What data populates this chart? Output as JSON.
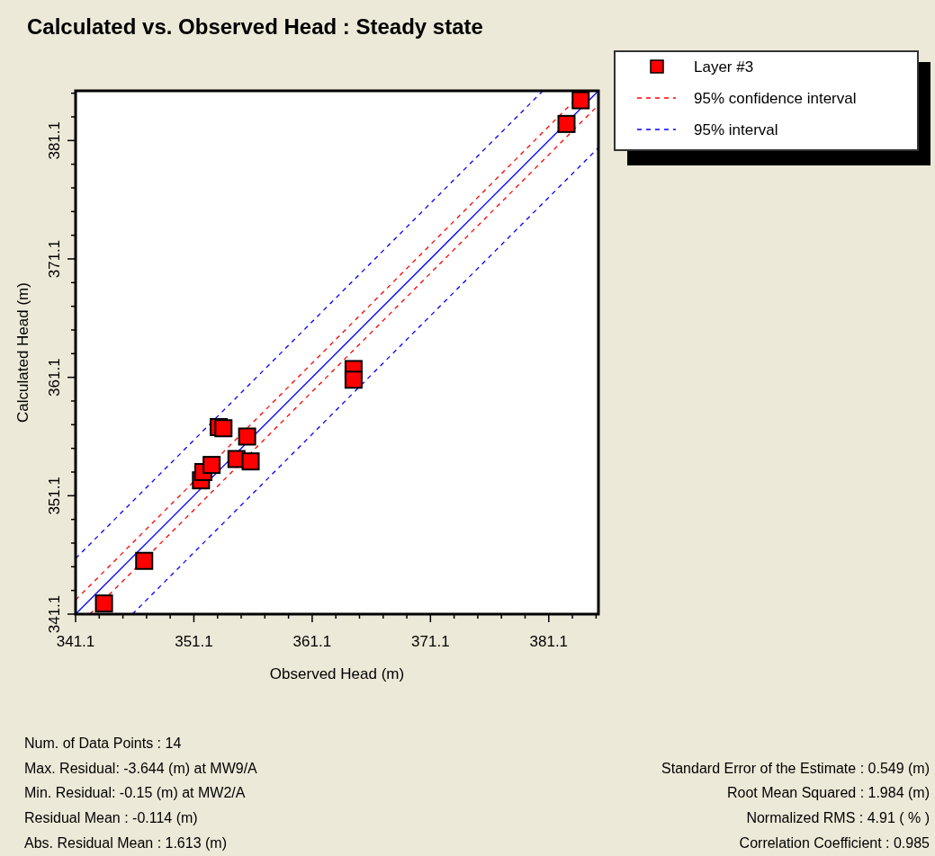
{
  "chart_data": {
    "type": "scatter",
    "title": "Calculated vs. Observed Head : Steady state",
    "xlabel": "Observed Head (m)",
    "ylabel": "Calculated Head (m)",
    "xlim": [
      341.1,
      385.3
    ],
    "ylim": [
      341.1,
      385.3
    ],
    "xticks": [
      341.1,
      {
        "value": 343.1,
        "label": null
      },
      {
        "value": 345.1,
        "label": null
      },
      {
        "value": 347.1,
        "label": null
      },
      {
        "value": 349.1,
        "label": null
      },
      351.1,
      {
        "value": 353.1,
        "label": null
      },
      {
        "value": 355.1,
        "label": null
      },
      {
        "value": 357.1,
        "label": null
      },
      {
        "value": 359.1,
        "label": null
      },
      361.1,
      {
        "value": 363.1,
        "label": null
      },
      {
        "value": 365.1,
        "label": null
      },
      {
        "value": 367.1,
        "label": null
      },
      {
        "value": 369.1,
        "label": null
      },
      371.1,
      {
        "value": 373.1,
        "label": null
      },
      {
        "value": 375.1,
        "label": null
      },
      {
        "value": 377.1,
        "label": null
      },
      {
        "value": 379.1,
        "label": null
      },
      381.1,
      {
        "value": 383.1,
        "label": null
      },
      {
        "value": 385.1,
        "label": null
      }
    ],
    "yticks": [
      341.1,
      {
        "value": 343.1,
        "label": null
      },
      {
        "value": 345.1,
        "label": null
      },
      {
        "value": 347.1,
        "label": null
      },
      {
        "value": 349.1,
        "label": null
      },
      351.1,
      {
        "value": 353.1,
        "label": null
      },
      {
        "value": 355.1,
        "label": null
      },
      {
        "value": 357.1,
        "label": null
      },
      {
        "value": 359.1,
        "label": null
      },
      361.1,
      {
        "value": 363.1,
        "label": null
      },
      {
        "value": 365.1,
        "label": null
      },
      {
        "value": 367.1,
        "label": null
      },
      {
        "value": 369.1,
        "label": null
      },
      371.1,
      {
        "value": 373.1,
        "label": null
      },
      {
        "value": 375.1,
        "label": null
      },
      {
        "value": 377.1,
        "label": null
      },
      {
        "value": 379.1,
        "label": null
      },
      381.1,
      {
        "value": 383.1,
        "label": null
      },
      {
        "value": 385.1,
        "label": null
      }
    ],
    "legend": "top right",
    "grid": false,
    "series": [
      {
        "name": "Layer #3",
        "color": "#ff0000",
        "marker": "square",
        "x": [
          343.5,
          346.9,
          351.7,
          351.9,
          352.6,
          353.2,
          353.6,
          354.7,
          355.9,
          355.6,
          364.6,
          364.6,
          382.6,
          383.8
        ],
        "values": [
          342.0,
          345.6,
          352.4,
          353.1,
          353.7,
          356.9,
          356.8,
          354.2,
          354.0,
          356.1,
          361.8,
          360.9,
          382.5,
          384.5
        ]
      },
      {
        "type": "line",
        "color": "#0000ff",
        "line_style": "solid",
        "x": [
          341.1,
          385.3
        ],
        "values": [
          341.1,
          385.3
        ]
      },
      {
        "type": "line",
        "name": "95% confidence interval",
        "color": "#ff0000",
        "line_style": "dashed",
        "x": [
          341.1,
          384.1
        ],
        "values": [
          342.3,
          385.3
        ]
      },
      {
        "type": "line",
        "color": "#ff0000",
        "line_style": "dashed",
        "x": [
          342.3,
          385.3
        ],
        "values": [
          341.1,
          384.1
        ]
      },
      {
        "type": "line",
        "name": "95% interval",
        "color": "#0000ff",
        "line_style": "dashed",
        "x": [
          341.1,
          380.6
        ],
        "values": [
          345.8,
          385.3
        ]
      },
      {
        "type": "line",
        "color": "#0000ff",
        "line_style": "dashed",
        "x": [
          345.9,
          385.3
        ],
        "values": [
          341.1,
          380.5
        ]
      }
    ],
    "annotations": [
      "Num. of Data Points : 14",
      "Max. Residual: -3.644 (m) at MW9/A",
      "Min. Residual: -0.15 (m) at MW2/A",
      "Residual Mean : -0.114 (m)",
      "Abs. Residual Mean : 1.613 (m)",
      "Standard Error of the Estimate : 0.549 (m)",
      "Root Mean Squared : 1.984 (m)",
      "Normalized RMS : 4.91 ( % )",
      "Correlation Coefficient : 0.985"
    ]
  }
}
